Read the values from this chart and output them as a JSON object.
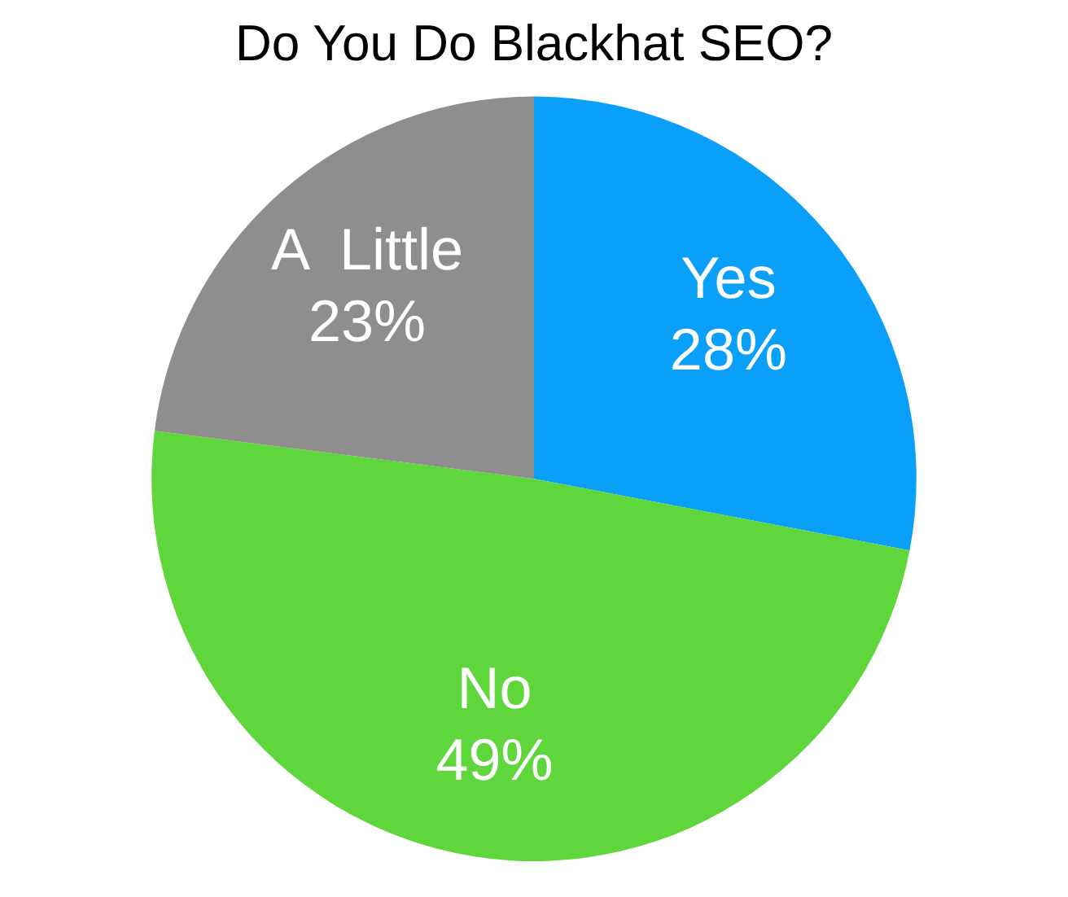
{
  "chart_data": {
    "type": "pie",
    "title": "Do You Do Blackhat SEO?",
    "categories": [
      "Yes",
      "No",
      "A  Little"
    ],
    "values": [
      28,
      49,
      23
    ],
    "value_labels": [
      "28%",
      "49%",
      "23%"
    ],
    "colors": [
      "#0aa0fa",
      "#5fd63b",
      "#8e8e8e"
    ],
    "legend": false
  }
}
